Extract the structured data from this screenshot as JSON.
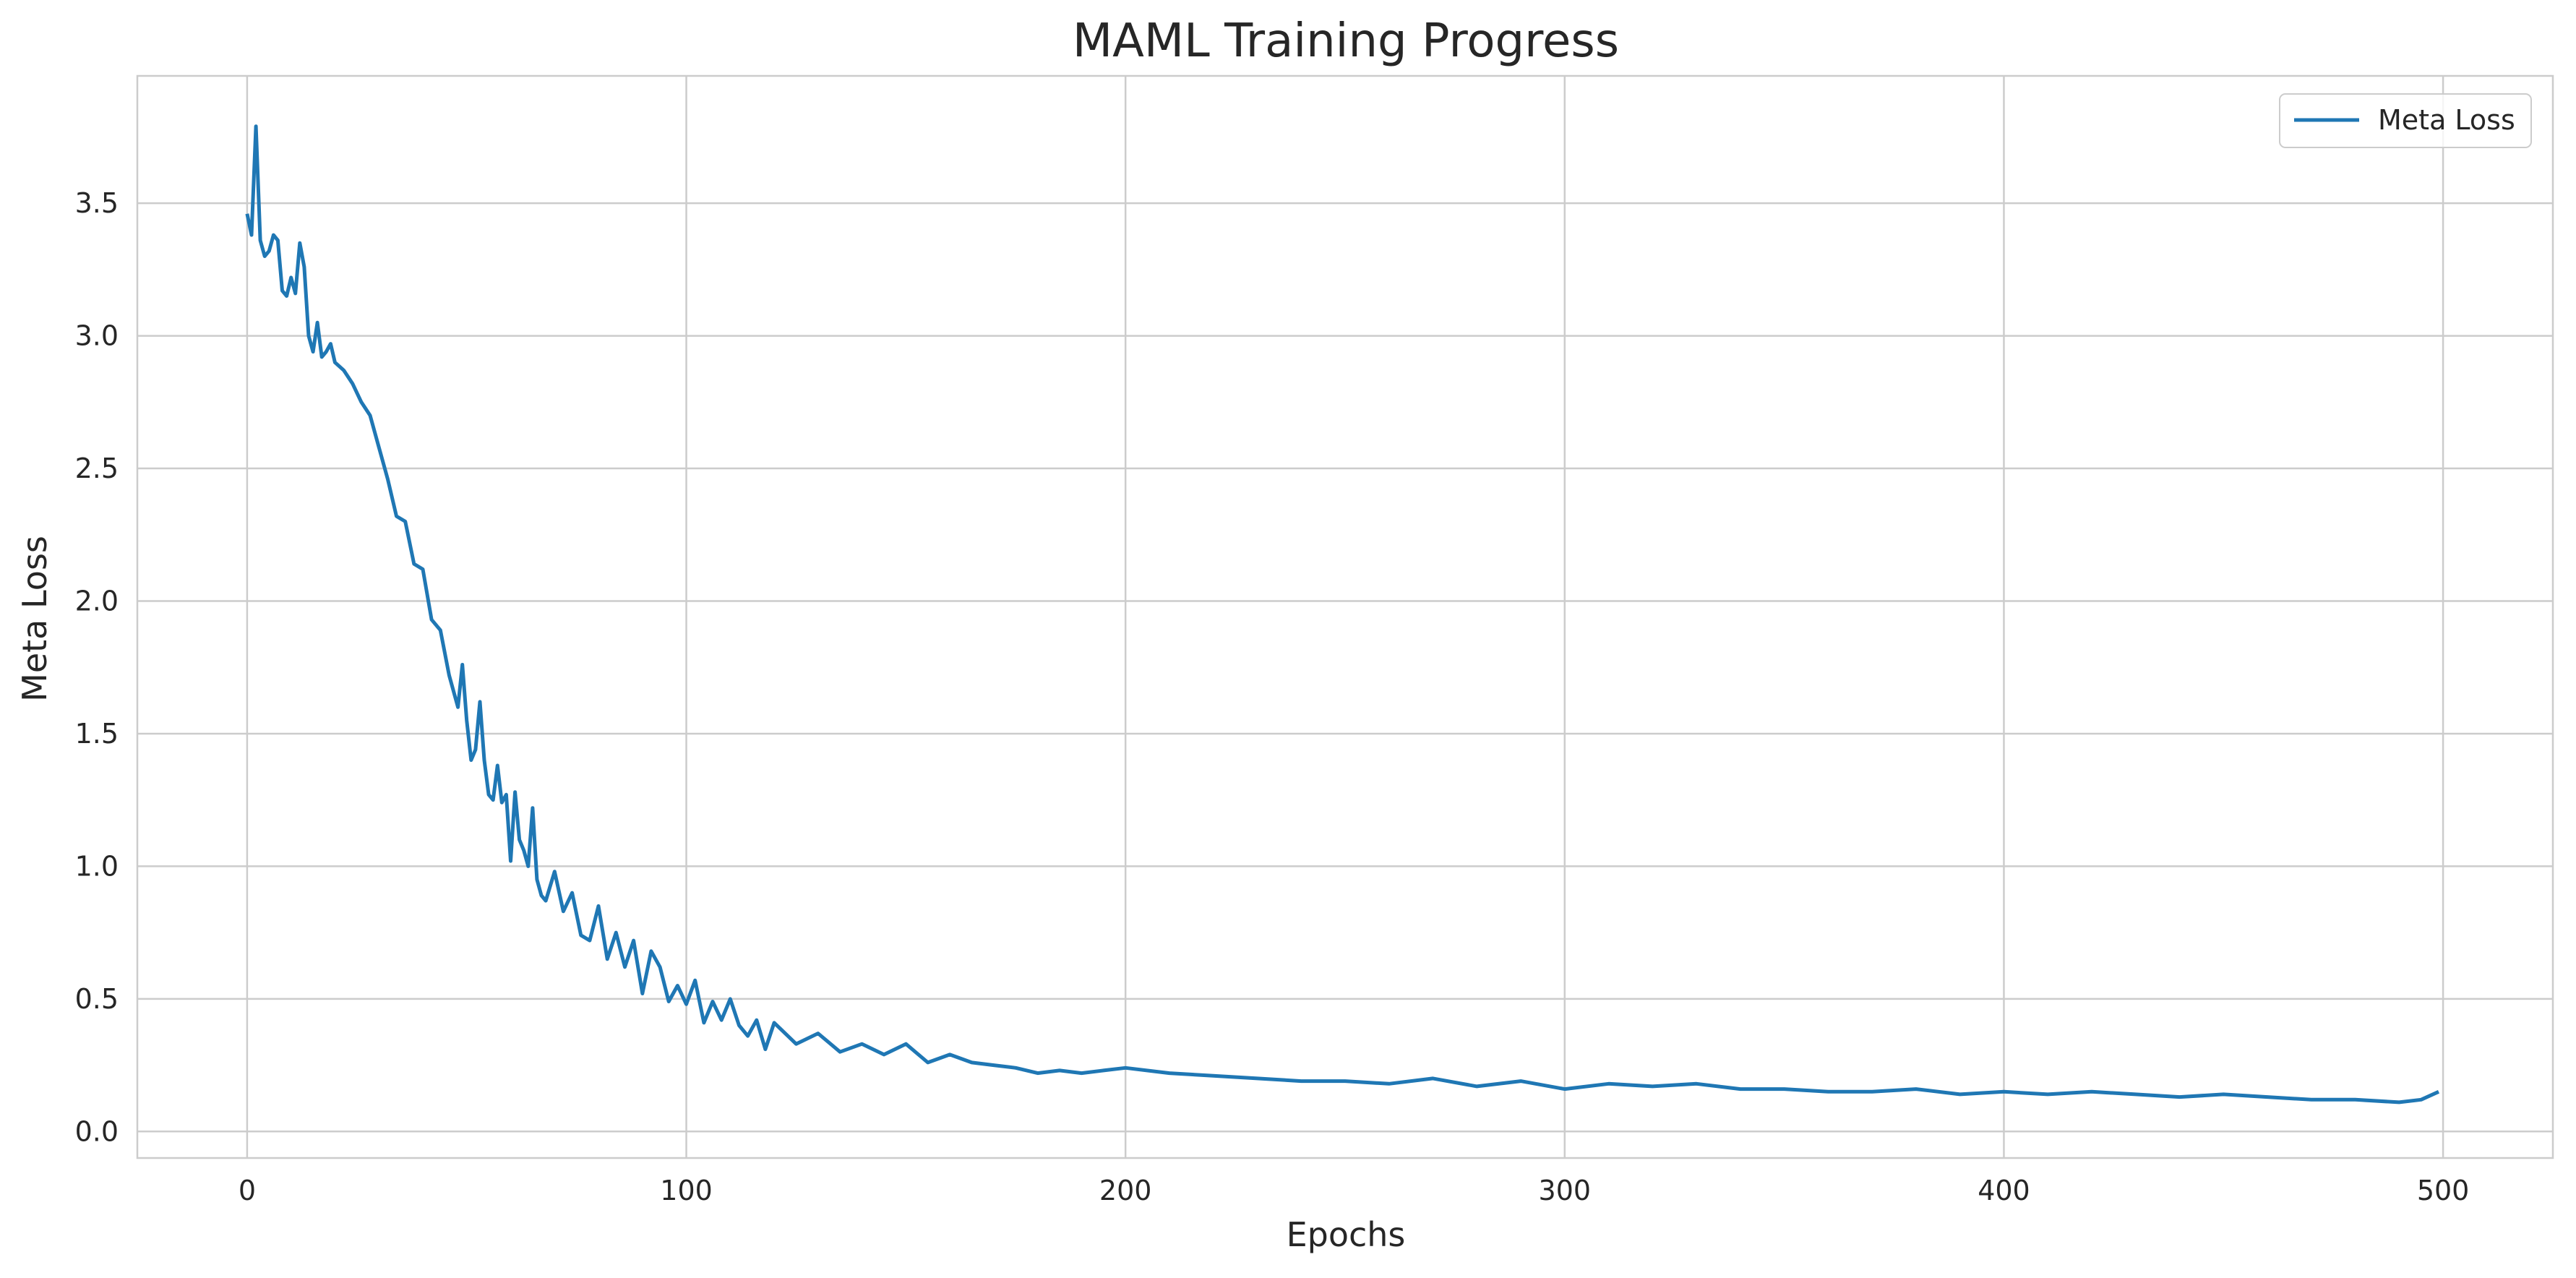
{
  "chart_data": {
    "type": "line",
    "title": "MAML Training Progress",
    "xlabel": "Epochs",
    "ylabel": "Meta Loss",
    "xlim": [
      -25,
      525
    ],
    "ylim": [
      -0.1,
      3.98
    ],
    "xticks": [
      0,
      100,
      200,
      300,
      400,
      500
    ],
    "yticks": [
      0.0,
      0.5,
      1.0,
      1.5,
      2.0,
      2.5,
      3.0,
      3.5
    ],
    "xtick_labels": [
      "0",
      "100",
      "200",
      "300",
      "400",
      "500"
    ],
    "ytick_labels": [
      "0.0",
      "0.5",
      "1.0",
      "1.5",
      "2.0",
      "2.5",
      "3.0",
      "3.5"
    ],
    "grid": true,
    "legend_position": "top-right",
    "colors": {
      "series": "#1f77b4",
      "grid": "#cccccc",
      "axes_edge": "#cccccc"
    },
    "series": [
      {
        "name": "Meta Loss",
        "x": [
          0,
          1,
          2,
          3,
          4,
          5,
          6,
          7,
          8,
          9,
          10,
          11,
          12,
          13,
          14,
          15,
          16,
          17,
          18,
          19,
          20,
          22,
          24,
          26,
          28,
          30,
          32,
          34,
          36,
          38,
          40,
          42,
          44,
          46,
          48,
          49,
          50,
          51,
          52,
          53,
          54,
          55,
          56,
          57,
          58,
          59,
          60,
          61,
          62,
          63,
          64,
          65,
          66,
          67,
          68,
          70,
          72,
          74,
          76,
          78,
          80,
          82,
          84,
          86,
          88,
          90,
          92,
          94,
          96,
          98,
          100,
          102,
          104,
          106,
          108,
          110,
          112,
          114,
          116,
          118,
          120,
          125,
          130,
          135,
          140,
          145,
          150,
          155,
          160,
          165,
          170,
          175,
          180,
          185,
          190,
          195,
          200,
          210,
          220,
          230,
          240,
          250,
          260,
          270,
          280,
          290,
          300,
          310,
          320,
          330,
          340,
          350,
          360,
          370,
          380,
          390,
          400,
          410,
          420,
          430,
          440,
          450,
          460,
          470,
          480,
          490,
          495,
          499
        ],
        "y": [
          3.46,
          3.38,
          3.79,
          3.36,
          3.3,
          3.32,
          3.38,
          3.36,
          3.17,
          3.15,
          3.22,
          3.16,
          3.35,
          3.26,
          3.0,
          2.94,
          3.05,
          2.92,
          2.94,
          2.97,
          2.9,
          2.87,
          2.82,
          2.75,
          2.7,
          2.58,
          2.46,
          2.32,
          2.3,
          2.14,
          2.12,
          1.93,
          1.89,
          1.72,
          1.6,
          1.76,
          1.55,
          1.4,
          1.44,
          1.62,
          1.4,
          1.27,
          1.25,
          1.38,
          1.24,
          1.27,
          1.02,
          1.28,
          1.1,
          1.06,
          1.0,
          1.22,
          0.95,
          0.89,
          0.87,
          0.98,
          0.83,
          0.9,
          0.74,
          0.72,
          0.85,
          0.65,
          0.75,
          0.62,
          0.72,
          0.52,
          0.68,
          0.62,
          0.49,
          0.55,
          0.48,
          0.57,
          0.41,
          0.49,
          0.42,
          0.5,
          0.4,
          0.36,
          0.42,
          0.31,
          0.41,
          0.33,
          0.37,
          0.3,
          0.33,
          0.29,
          0.33,
          0.26,
          0.29,
          0.26,
          0.25,
          0.24,
          0.22,
          0.23,
          0.22,
          0.23,
          0.24,
          0.22,
          0.21,
          0.2,
          0.19,
          0.19,
          0.18,
          0.2,
          0.17,
          0.19,
          0.16,
          0.18,
          0.17,
          0.18,
          0.16,
          0.16,
          0.15,
          0.15,
          0.16,
          0.14,
          0.15,
          0.14,
          0.15,
          0.14,
          0.13,
          0.14,
          0.13,
          0.12,
          0.12,
          0.11,
          0.12,
          0.15
        ]
      }
    ]
  }
}
